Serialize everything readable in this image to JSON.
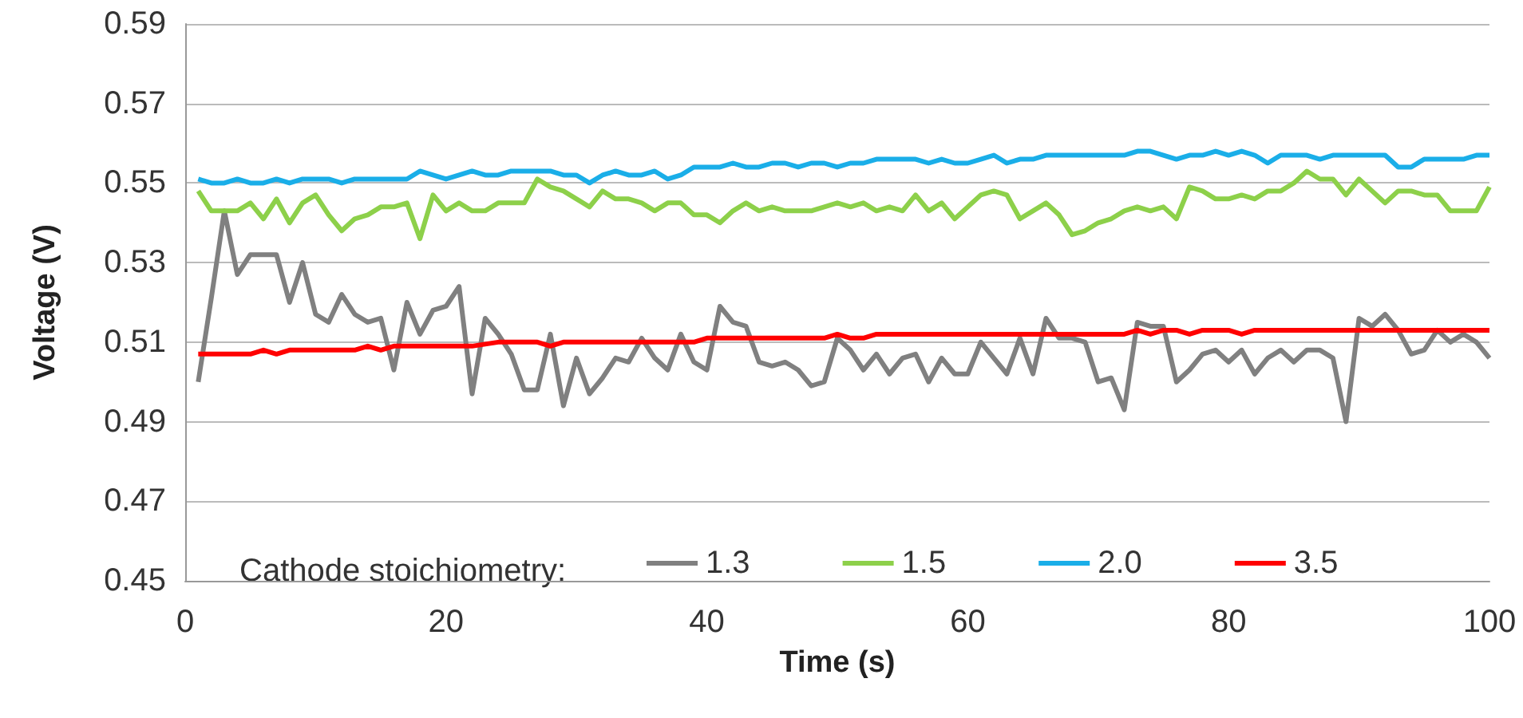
{
  "chart_data": {
    "type": "line",
    "xlabel": "Time (s)",
    "ylabel": "Voltage (V)",
    "legend_title": "Cathode stoichiometry:",
    "x": [
      1,
      2,
      3,
      4,
      5,
      6,
      7,
      8,
      9,
      10,
      11,
      12,
      13,
      14,
      15,
      16,
      17,
      18,
      19,
      20,
      21,
      22,
      23,
      24,
      25,
      26,
      27,
      28,
      29,
      30,
      31,
      32,
      33,
      34,
      35,
      36,
      37,
      38,
      39,
      40,
      41,
      42,
      43,
      44,
      45,
      46,
      47,
      48,
      49,
      50,
      51,
      52,
      53,
      54,
      55,
      56,
      57,
      58,
      59,
      60,
      61,
      62,
      63,
      64,
      65,
      66,
      67,
      68,
      69,
      70,
      71,
      72,
      73,
      74,
      75,
      76,
      77,
      78,
      79,
      80,
      81,
      82,
      83,
      84,
      85,
      86,
      87,
      88,
      89,
      90,
      91,
      92,
      93,
      94,
      95,
      96,
      97,
      98,
      99,
      100
    ],
    "series": [
      {
        "name": "1.3",
        "color": "#808080",
        "values": [
          0.5,
          0.521,
          0.543,
          0.527,
          0.532,
          0.532,
          0.532,
          0.52,
          0.53,
          0.517,
          0.515,
          0.522,
          0.517,
          0.515,
          0.516,
          0.503,
          0.52,
          0.512,
          0.518,
          0.519,
          0.524,
          0.497,
          0.516,
          0.512,
          0.507,
          0.498,
          0.498,
          0.512,
          0.494,
          0.506,
          0.497,
          0.501,
          0.506,
          0.505,
          0.511,
          0.506,
          0.503,
          0.512,
          0.505,
          0.503,
          0.519,
          0.515,
          0.514,
          0.505,
          0.504,
          0.505,
          0.503,
          0.499,
          0.5,
          0.511,
          0.508,
          0.503,
          0.507,
          0.502,
          0.506,
          0.507,
          0.5,
          0.506,
          0.502,
          0.502,
          0.51,
          0.506,
          0.502,
          0.511,
          0.502,
          0.516,
          0.511,
          0.511,
          0.51,
          0.5,
          0.501,
          0.493,
          0.515,
          0.514,
          0.514,
          0.5,
          0.503,
          0.507,
          0.508,
          0.505,
          0.508,
          0.502,
          0.506,
          0.508,
          0.505,
          0.508,
          0.508,
          0.506,
          0.49,
          0.516,
          0.514,
          0.517,
          0.513,
          0.507,
          0.508,
          0.513,
          0.51,
          0.512,
          0.51,
          0.506
        ]
      },
      {
        "name": "1.5",
        "color": "#8dd04a",
        "values": [
          0.548,
          0.543,
          0.543,
          0.543,
          0.545,
          0.541,
          0.546,
          0.54,
          0.545,
          0.547,
          0.542,
          0.538,
          0.541,
          0.542,
          0.544,
          0.544,
          0.545,
          0.536,
          0.547,
          0.543,
          0.545,
          0.543,
          0.543,
          0.545,
          0.545,
          0.545,
          0.551,
          0.549,
          0.548,
          0.546,
          0.544,
          0.548,
          0.546,
          0.546,
          0.545,
          0.543,
          0.545,
          0.545,
          0.542,
          0.542,
          0.54,
          0.543,
          0.545,
          0.543,
          0.544,
          0.543,
          0.543,
          0.543,
          0.544,
          0.545,
          0.544,
          0.545,
          0.543,
          0.544,
          0.543,
          0.547,
          0.543,
          0.545,
          0.541,
          0.544,
          0.547,
          0.548,
          0.547,
          0.541,
          0.543,
          0.545,
          0.542,
          0.537,
          0.538,
          0.54,
          0.541,
          0.543,
          0.544,
          0.543,
          0.544,
          0.541,
          0.549,
          0.548,
          0.546,
          0.546,
          0.547,
          0.546,
          0.548,
          0.548,
          0.55,
          0.553,
          0.551,
          0.551,
          0.547,
          0.551,
          0.548,
          0.545,
          0.548,
          0.548,
          0.547,
          0.547,
          0.543,
          0.543,
          0.543,
          0.549
        ]
      },
      {
        "name": "2.0",
        "color": "#1aaee8",
        "values": [
          0.551,
          0.55,
          0.55,
          0.551,
          0.55,
          0.55,
          0.551,
          0.55,
          0.551,
          0.551,
          0.551,
          0.55,
          0.551,
          0.551,
          0.551,
          0.551,
          0.551,
          0.553,
          0.552,
          0.551,
          0.552,
          0.553,
          0.552,
          0.552,
          0.553,
          0.553,
          0.553,
          0.553,
          0.552,
          0.552,
          0.55,
          0.552,
          0.553,
          0.552,
          0.552,
          0.553,
          0.551,
          0.552,
          0.554,
          0.554,
          0.554,
          0.555,
          0.554,
          0.554,
          0.555,
          0.555,
          0.554,
          0.555,
          0.555,
          0.554,
          0.555,
          0.555,
          0.556,
          0.556,
          0.556,
          0.556,
          0.555,
          0.556,
          0.555,
          0.555,
          0.556,
          0.557,
          0.555,
          0.556,
          0.556,
          0.557,
          0.557,
          0.557,
          0.557,
          0.557,
          0.557,
          0.557,
          0.558,
          0.558,
          0.557,
          0.556,
          0.557,
          0.557,
          0.558,
          0.557,
          0.558,
          0.557,
          0.555,
          0.557,
          0.557,
          0.557,
          0.556,
          0.557,
          0.557,
          0.557,
          0.557,
          0.557,
          0.554,
          0.554,
          0.556,
          0.556,
          0.556,
          0.556,
          0.557,
          0.557
        ]
      },
      {
        "name": "3.5",
        "color": "#ff0000",
        "x": [
          1,
          5,
          6,
          7,
          8,
          13,
          14,
          15,
          16,
          22,
          24,
          27,
          28,
          29,
          30,
          39,
          40,
          49,
          50,
          51,
          52,
          53,
          72,
          73,
          74,
          75,
          76,
          77,
          78,
          80,
          81,
          82,
          100
        ],
        "values": [
          0.507,
          0.507,
          0.508,
          0.507,
          0.508,
          0.508,
          0.509,
          0.508,
          0.509,
          0.509,
          0.51,
          0.51,
          0.509,
          0.51,
          0.51,
          0.51,
          0.511,
          0.511,
          0.512,
          0.511,
          0.511,
          0.512,
          0.512,
          0.513,
          0.512,
          0.513,
          0.513,
          0.512,
          0.513,
          0.513,
          0.512,
          0.513,
          0.513
        ]
      }
    ],
    "xlim": [
      0,
      100
    ],
    "xticks": [
      0,
      20,
      40,
      60,
      80,
      100
    ],
    "ylim": [
      0.45,
      0.59
    ],
    "yticks": [
      0.45,
      0.47,
      0.49,
      0.51,
      0.53,
      0.55,
      0.57,
      0.59
    ],
    "grid": "y",
    "legend": "bottom",
    "marker": "none",
    "line_style": "solid"
  }
}
